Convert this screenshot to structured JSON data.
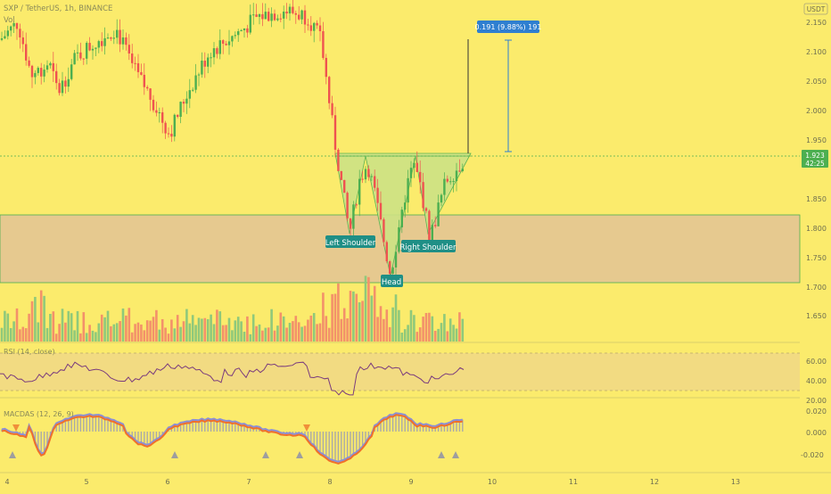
{
  "header": {
    "symbol_line": "SXP / TetherUS, 1h, BINANCE",
    "volume_label": "Vol",
    "currency_badge": "USDT"
  },
  "price_axis": {
    "labels": [
      "2.150",
      "2.100",
      "2.050",
      "2.000",
      "1.950",
      "1.850",
      "1.800",
      "1.750",
      "1.700",
      "1.650"
    ]
  },
  "last_price": {
    "value": "1.923",
    "countdown": "42:25"
  },
  "measure_label": "0.191 (9.88%) 191",
  "pattern_labels": {
    "left_shoulder": "Left Shoulder",
    "head": "Head",
    "right_shoulder": "Right Shoulder"
  },
  "rsi": {
    "title": "RSI (14, close)",
    "axis_labels": [
      "60.00",
      "40.00",
      "20.00"
    ]
  },
  "macd": {
    "title": "MACDAS (12, 26, 9)",
    "axis_labels": [
      "0.020",
      "0.000",
      "-0.020"
    ]
  },
  "time_axis": {
    "labels": [
      "4",
      "5",
      "6",
      "7",
      "8",
      "9",
      "10",
      "11",
      "12",
      "13"
    ]
  },
  "colors": {
    "background": "#fbeb6c",
    "candle_up": "#4caf50",
    "candle_down": "#ef5350",
    "volume_up": "#8fc97b",
    "volume_down": "#f3916a",
    "zone_fill": "#e6c98f",
    "pattern_fill": "#cde385",
    "label_bg": "#1f8f86",
    "measure_bg": "#2f7fd0",
    "rsi_line": "#7a3b7e",
    "macd_line": "#8a8fd6",
    "macd_signal": "#f0702a"
  },
  "chart_data": {
    "type": "candlestick",
    "title": "SXP / TetherUS, 1h, BINANCE",
    "y_range": [
      1.6,
      2.17
    ],
    "x_range": [
      "4",
      "13"
    ],
    "support_zone": [
      1.703,
      1.817
    ],
    "last_price": 1.923,
    "pattern": "inverse head and shoulders",
    "key_points": [
      {
        "label": "Left Shoulder",
        "day": 8.25,
        "price": 1.785
      },
      {
        "label": "Head",
        "day": 8.75,
        "price": 1.72
      },
      {
        "label": "Right Shoulder",
        "day": 9.22,
        "price": 1.782
      }
    ],
    "neckline": 1.918,
    "measure": {
      "from": 1.93,
      "to": 2.12
    },
    "rsi": {
      "range": [
        20,
        70
      ],
      "bands": [
        30,
        70
      ]
    },
    "macd": {
      "range": [
        -0.025,
        0.02
      ]
    }
  }
}
